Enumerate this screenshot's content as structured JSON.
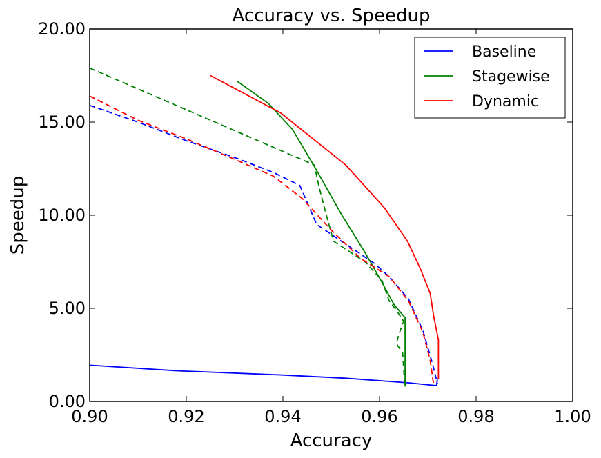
{
  "chart_data": {
    "type": "line",
    "title": "Accuracy vs. Speedup",
    "xlabel": "Accuracy",
    "ylabel": "Speedup",
    "xlim": [
      0.9,
      1.0
    ],
    "ylim": [
      0,
      20
    ],
    "x_ticks": [
      0.9,
      0.92,
      0.94,
      0.96,
      0.98,
      1.0
    ],
    "x_tick_labels": [
      "0.90",
      "0.92",
      "0.94",
      "0.96",
      "0.98",
      "1.00"
    ],
    "y_ticks": [
      0,
      5,
      10,
      15,
      20
    ],
    "y_tick_labels": [
      "0.00",
      "5.00",
      "10.00",
      "15.00",
      "20.00"
    ],
    "grid": false,
    "legend_position": "top-right",
    "colors": {
      "Baseline": "#0000ff",
      "Stagewise": "#008000",
      "Dynamic": "#ff0000"
    },
    "legend": [
      {
        "label": "Baseline",
        "color": "#0000ff"
      },
      {
        "label": "Stagewise",
        "color": "#008000"
      },
      {
        "label": "Dynamic",
        "color": "#ff0000"
      }
    ],
    "series": [
      {
        "color": "#0000ff",
        "dashed": false,
        "x": [
          0.9,
          0.918,
          0.94,
          0.953,
          0.966,
          0.9718,
          0.972
        ],
        "y": [
          1.95,
          1.65,
          1.42,
          1.25,
          1.0,
          0.85,
          1.2
        ]
      },
      {
        "color": "#0000ff",
        "dashed": true,
        "x": [
          0.9,
          0.91,
          0.92,
          0.93,
          0.938,
          0.9435,
          0.9455,
          0.947,
          0.955,
          0.959,
          0.962,
          0.966,
          0.969,
          0.971,
          0.972
        ],
        "y": [
          15.9,
          15.0,
          14.0,
          13.1,
          12.3,
          11.6,
          10.4,
          9.5,
          8.1,
          7.4,
          6.7,
          5.5,
          3.8,
          2.0,
          0.95
        ]
      },
      {
        "color": "#008000",
        "dashed": false,
        "x": [
          0.9305,
          0.937,
          0.942,
          0.947,
          0.952,
          0.957,
          0.9605,
          0.963,
          0.9653,
          0.9653,
          0.9653
        ],
        "y": [
          17.2,
          16.0,
          14.6,
          12.4,
          10.1,
          8.0,
          6.4,
          5.2,
          4.5,
          2.5,
          0.8
        ]
      },
      {
        "color": "#008000",
        "dashed": true,
        "x": [
          0.9,
          0.9465,
          0.9475,
          0.949,
          0.9505,
          0.957,
          0.9605,
          0.962,
          0.9635,
          0.965,
          0.964,
          0.9635,
          0.9648,
          0.965,
          0.9652
        ],
        "y": [
          17.9,
          12.7,
          11.5,
          10.0,
          8.6,
          7.5,
          6.5,
          5.4,
          4.9,
          4.3,
          3.6,
          3.1,
          2.6,
          1.8,
          0.8
        ]
      },
      {
        "color": "#ff0000",
        "dashed": false,
        "x": [
          0.925,
          0.9395,
          0.953,
          0.961,
          0.9658,
          0.9685,
          0.9705,
          0.9712,
          0.9722,
          0.9722,
          0.9722
        ],
        "y": [
          17.5,
          15.5,
          12.7,
          10.4,
          8.6,
          7.1,
          5.8,
          4.6,
          3.3,
          2.0,
          1.2
        ]
      },
      {
        "color": "#ff0000",
        "dashed": true,
        "x": [
          0.9,
          0.91,
          0.92,
          0.93,
          0.938,
          0.944,
          0.95,
          0.956,
          0.962,
          0.966,
          0.969,
          0.9705,
          0.9712
        ],
        "y": [
          16.4,
          15.1,
          14.1,
          13.0,
          12.1,
          10.9,
          9.2,
          7.7,
          6.7,
          5.4,
          3.7,
          2.2,
          0.9
        ]
      }
    ]
  }
}
